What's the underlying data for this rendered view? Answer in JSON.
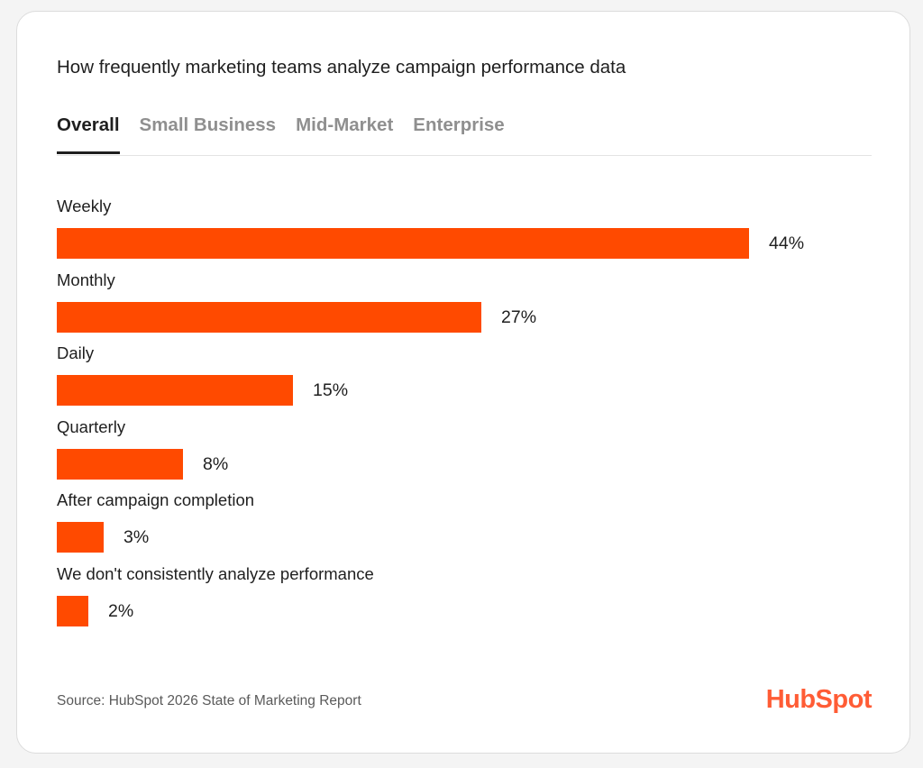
{
  "title": "How frequently marketing teams analyze campaign performance data",
  "tabs": [
    {
      "label": "Overall",
      "active": true
    },
    {
      "label": "Small Business",
      "active": false
    },
    {
      "label": "Mid-Market",
      "active": false
    },
    {
      "label": "Enterprise",
      "active": false
    }
  ],
  "chart_data": {
    "type": "bar",
    "orientation": "horizontal",
    "categories": [
      "Weekly",
      "Monthly",
      "Daily",
      "Quarterly",
      "After campaign completion",
      "We don't consistently analyze performance"
    ],
    "values": [
      44,
      27,
      15,
      8,
      3,
      2
    ],
    "value_labels": [
      "44%",
      "27%",
      "15%",
      "8%",
      "3%",
      "2%"
    ],
    "unit": "%",
    "bar_color": "#ff4a00",
    "title": "How frequently marketing teams analyze campaign performance data",
    "xlabel": "",
    "ylabel": "",
    "grid": false
  },
  "source": "Source: HubSpot 2026 State of Marketing Report",
  "logo_text": "HubSpot",
  "brand_color": "#ff5c35"
}
